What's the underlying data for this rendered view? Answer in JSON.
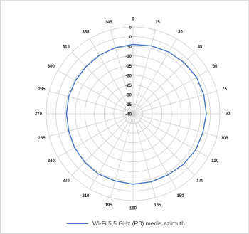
{
  "chart_data": {
    "type": "polar-line",
    "angle_unit": "degrees",
    "angle_zero": "top",
    "angle_direction": "clockwise",
    "angle_ticks": [
      0,
      15,
      30,
      45,
      60,
      75,
      90,
      105,
      120,
      135,
      150,
      165,
      180,
      195,
      210,
      225,
      240,
      255,
      270,
      285,
      300,
      315,
      330,
      345
    ],
    "radial_ticks": [
      5,
      0,
      -5,
      -10,
      -15,
      -20,
      -25,
      -30,
      -35,
      -40
    ],
    "radial_range": [
      -40,
      5
    ],
    "grid": true,
    "legend": "bottom",
    "series": [
      {
        "name": "Wi-Fi 5,5 GHz (R0) media azimuth",
        "color": "#4472c4",
        "angles": [
          0,
          15,
          30,
          45,
          60,
          75,
          90,
          105,
          120,
          135,
          150,
          165,
          180,
          195,
          210,
          225,
          240,
          255,
          270,
          285,
          300,
          315,
          330,
          345
        ],
        "values": [
          -4,
          -3.5,
          -3,
          -2.5,
          -2,
          -2,
          -2,
          -2.5,
          -2.5,
          -3,
          -3.5,
          -3.5,
          -3.5,
          -4,
          -4,
          -4.5,
          -5,
          -5.5,
          -5.5,
          -5.5,
          -5.5,
          -5.5,
          -5,
          -4.5
        ]
      }
    ]
  }
}
